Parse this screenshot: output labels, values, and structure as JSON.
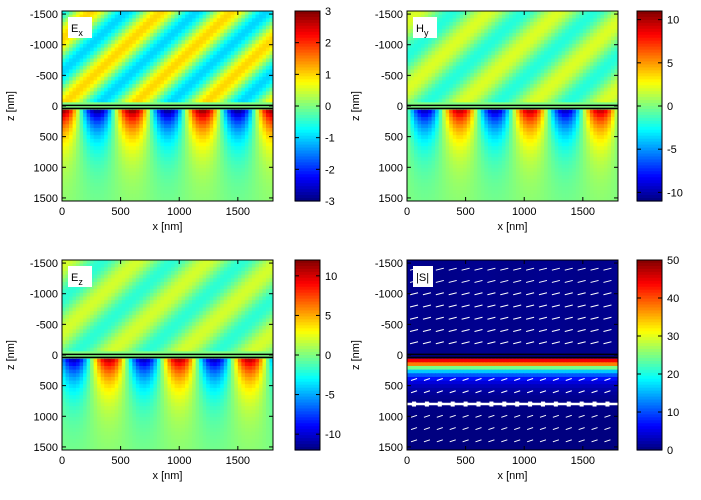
{
  "chart_data": [
    {
      "type": "heatmap",
      "label": "E",
      "label_sub": "x",
      "xlabel": "x [nm]",
      "ylabel": "z [nm]",
      "xlim": [
        0,
        1800
      ],
      "ylim": [
        -1550,
        1550
      ],
      "xticks": [
        0,
        500,
        1000,
        1500
      ],
      "yticks": [
        -1500,
        -1000,
        -500,
        0,
        500,
        1000,
        1500
      ],
      "colorbar": {
        "min": -3,
        "max": 3,
        "ticks": [
          3,
          2,
          1,
          0,
          -1,
          -2,
          -3
        ]
      },
      "field": {
        "period_nm": 600,
        "upper_amplitude": 1.0,
        "lower_amplitude": 3.0,
        "phase_deg": 0
      }
    },
    {
      "type": "heatmap",
      "label": "H",
      "label_sub": "y",
      "xlabel": "x [nm]",
      "ylabel": "z [nm]",
      "xlim": [
        0,
        1800
      ],
      "ylim": [
        -1550,
        1550
      ],
      "xticks": [
        0,
        500,
        1000,
        1500
      ],
      "yticks": [
        -1500,
        -1000,
        -500,
        0,
        500,
        1000,
        1500
      ],
      "colorbar": {
        "min": -11,
        "max": 11,
        "ticks": [
          10,
          5,
          0,
          -5,
          -10
        ]
      },
      "field": {
        "period_nm": 600,
        "upper_amplitude": 2.0,
        "lower_amplitude": 10.0,
        "phase_deg": 90
      }
    },
    {
      "type": "heatmap",
      "label": "E",
      "label_sub": "z",
      "xlabel": "x [nm]",
      "ylabel": "z [nm]",
      "xlim": [
        0,
        1800
      ],
      "ylim": [
        -1550,
        1550
      ],
      "xticks": [
        0,
        500,
        1000,
        1500
      ],
      "yticks": [
        -1500,
        -1000,
        -500,
        0,
        500,
        1000,
        1500
      ],
      "colorbar": {
        "min": -12,
        "max": 12,
        "ticks": [
          10,
          5,
          0,
          -5,
          -10
        ]
      },
      "field": {
        "period_nm": 600,
        "upper_amplitude": 2.0,
        "lower_amplitude": 11.0,
        "phase_deg": 120
      }
    },
    {
      "type": "heatmap",
      "label": "|S|",
      "label_sub": "",
      "xlabel": "x [nm]",
      "ylabel": "z [nm]",
      "xlim": [
        0,
        1800
      ],
      "ylim": [
        -1550,
        1550
      ],
      "xticks": [
        0,
        500,
        1000,
        1500
      ],
      "yticks": [
        -1500,
        -1000,
        -500,
        0,
        500,
        1000,
        1500
      ],
      "colorbar": {
        "min": 0,
        "max": 50,
        "ticks": [
          50,
          40,
          30,
          20,
          10,
          0
        ]
      },
      "field": {
        "peak_value": 50,
        "quiver": true
      }
    }
  ]
}
